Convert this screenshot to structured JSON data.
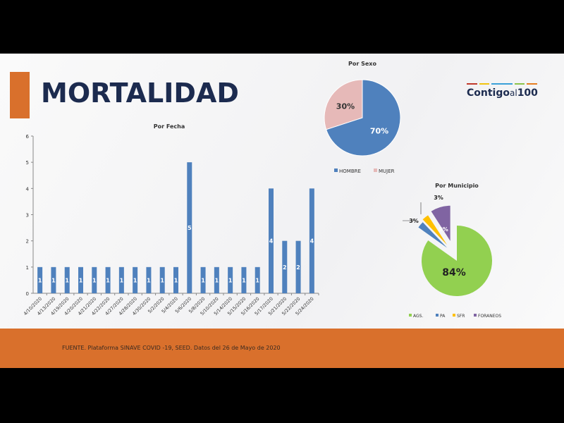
{
  "slide": {
    "title": "MORTALIDAD",
    "logo": {
      "main": "Contigo",
      "mid": "al",
      "num": "100"
    },
    "footer": "FUENTE. Plataforma SINAVE COVID -19, SEED. Datos del 26 de Mayo de 2020"
  },
  "colors": {
    "accent": "#d9702c",
    "title": "#1c2b4f",
    "bar": "#4f81bd"
  },
  "chart_data": [
    {
      "type": "bar",
      "title": "Por Fecha",
      "categories": [
        "4/10/2020",
        "4/13/2020",
        "4/19/2020",
        "4/20/2020",
        "4/21/2020",
        "4/22/2020",
        "4/27/2020",
        "4/28/2020",
        "4/30/2020",
        "5/2/2020",
        "5/4/2020",
        "5/6/2020",
        "5/8/2020",
        "5/10/2020",
        "5/14/2020",
        "5/15/2020",
        "5/16/2020",
        "5/17/2020",
        "5/21/2020",
        "5/22/2020",
        "5/24/2020"
      ],
      "values": [
        1,
        1,
        1,
        1,
        1,
        1,
        1,
        1,
        1,
        1,
        1,
        5,
        1,
        1,
        1,
        1,
        1,
        4,
        2,
        2,
        4
      ],
      "ylim": [
        0,
        6
      ],
      "yticks": [
        "0",
        "1",
        "2",
        "3",
        "4",
        "5",
        "6"
      ],
      "data_labels": true,
      "grid": false
    },
    {
      "type": "pie",
      "title": "Por Sexo",
      "slices": [
        {
          "name": "HOMBRE",
          "value": 70,
          "label": "70%",
          "color": "#4f81bd"
        },
        {
          "name": "MUJER",
          "value": 30,
          "label": "30%",
          "color": "#e6b9b8"
        }
      ],
      "legend": "bottom"
    },
    {
      "type": "pie",
      "title": "Por Municipio",
      "exploded": true,
      "slices": [
        {
          "name": "AGS.",
          "value": 84,
          "label": "84%",
          "color": "#92d050"
        },
        {
          "name": "PA",
          "value": 3,
          "label": "3%",
          "color": "#4f81bd"
        },
        {
          "name": "SFR",
          "value": 3,
          "label": "3%",
          "color": "#ffc000"
        },
        {
          "name": "FORANEOS",
          "value": 9,
          "label": "9%",
          "color": "#8064a2"
        }
      ],
      "legend": "bottom"
    }
  ]
}
